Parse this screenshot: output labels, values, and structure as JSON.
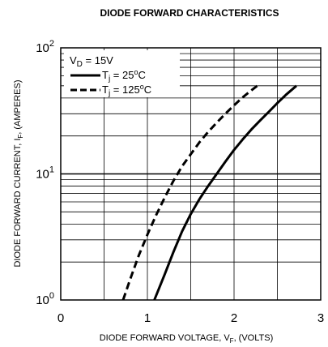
{
  "chart_data": {
    "type": "line",
    "title": "DIODE FORWARD CHARACTERISTICS",
    "xlabel": {
      "main": "DIODE FORWARD VOLTAGE, V",
      "sub": "F",
      "tail": ", (VOLTS)"
    },
    "ylabel": {
      "main": "DIODE FORWARD CURRENT, I",
      "sub": "F",
      "tail": ", (AMPERES)"
    },
    "xlim": [
      0,
      3
    ],
    "ylim": [
      1,
      100
    ],
    "yscale": "log",
    "grid": true,
    "legend_position": "top-left",
    "x_ticks": [
      "0",
      "1",
      "2",
      "3"
    ],
    "y_ticks": [
      {
        "base": "10",
        "exp": "0"
      },
      {
        "base": "10",
        "exp": "1"
      },
      {
        "base": "10",
        "exp": "2"
      }
    ],
    "annotation": {
      "main": "V",
      "sub": "D",
      "tail": " = 15V"
    },
    "series": [
      {
        "label": {
          "main": "T",
          "sub": "j",
          "tail": " = 25",
          "sup": "o",
          "unit": "C"
        },
        "style": "solid",
        "x": [
          1.08,
          1.2,
          1.3,
          1.4,
          1.5,
          1.6,
          1.7,
          1.8,
          1.9,
          2.0,
          2.1,
          2.2,
          2.3,
          2.4,
          2.5,
          2.6,
          2.72
        ],
        "y": [
          1.0,
          1.6,
          2.4,
          3.5,
          4.8,
          6.3,
          8.0,
          10.0,
          12.5,
          15.5,
          18.8,
          22.5,
          26.5,
          31.0,
          36.5,
          42.5,
          50.0
        ]
      },
      {
        "label": {
          "main": "T",
          "sub": "j",
          "tail": " = 125",
          "sup": "o",
          "unit": "C"
        },
        "style": "dashed",
        "x": [
          0.72,
          0.8,
          0.9,
          1.0,
          1.1,
          1.2,
          1.3,
          1.4,
          1.5,
          1.6,
          1.7,
          1.8,
          1.9,
          2.0,
          2.1,
          2.2,
          2.3
        ],
        "y": [
          1.0,
          1.45,
          2.25,
          3.3,
          4.7,
          6.5,
          8.8,
          11.5,
          14.3,
          17.8,
          21.5,
          25.5,
          30.0,
          35.0,
          40.5,
          46.0,
          52.0
        ]
      }
    ]
  }
}
